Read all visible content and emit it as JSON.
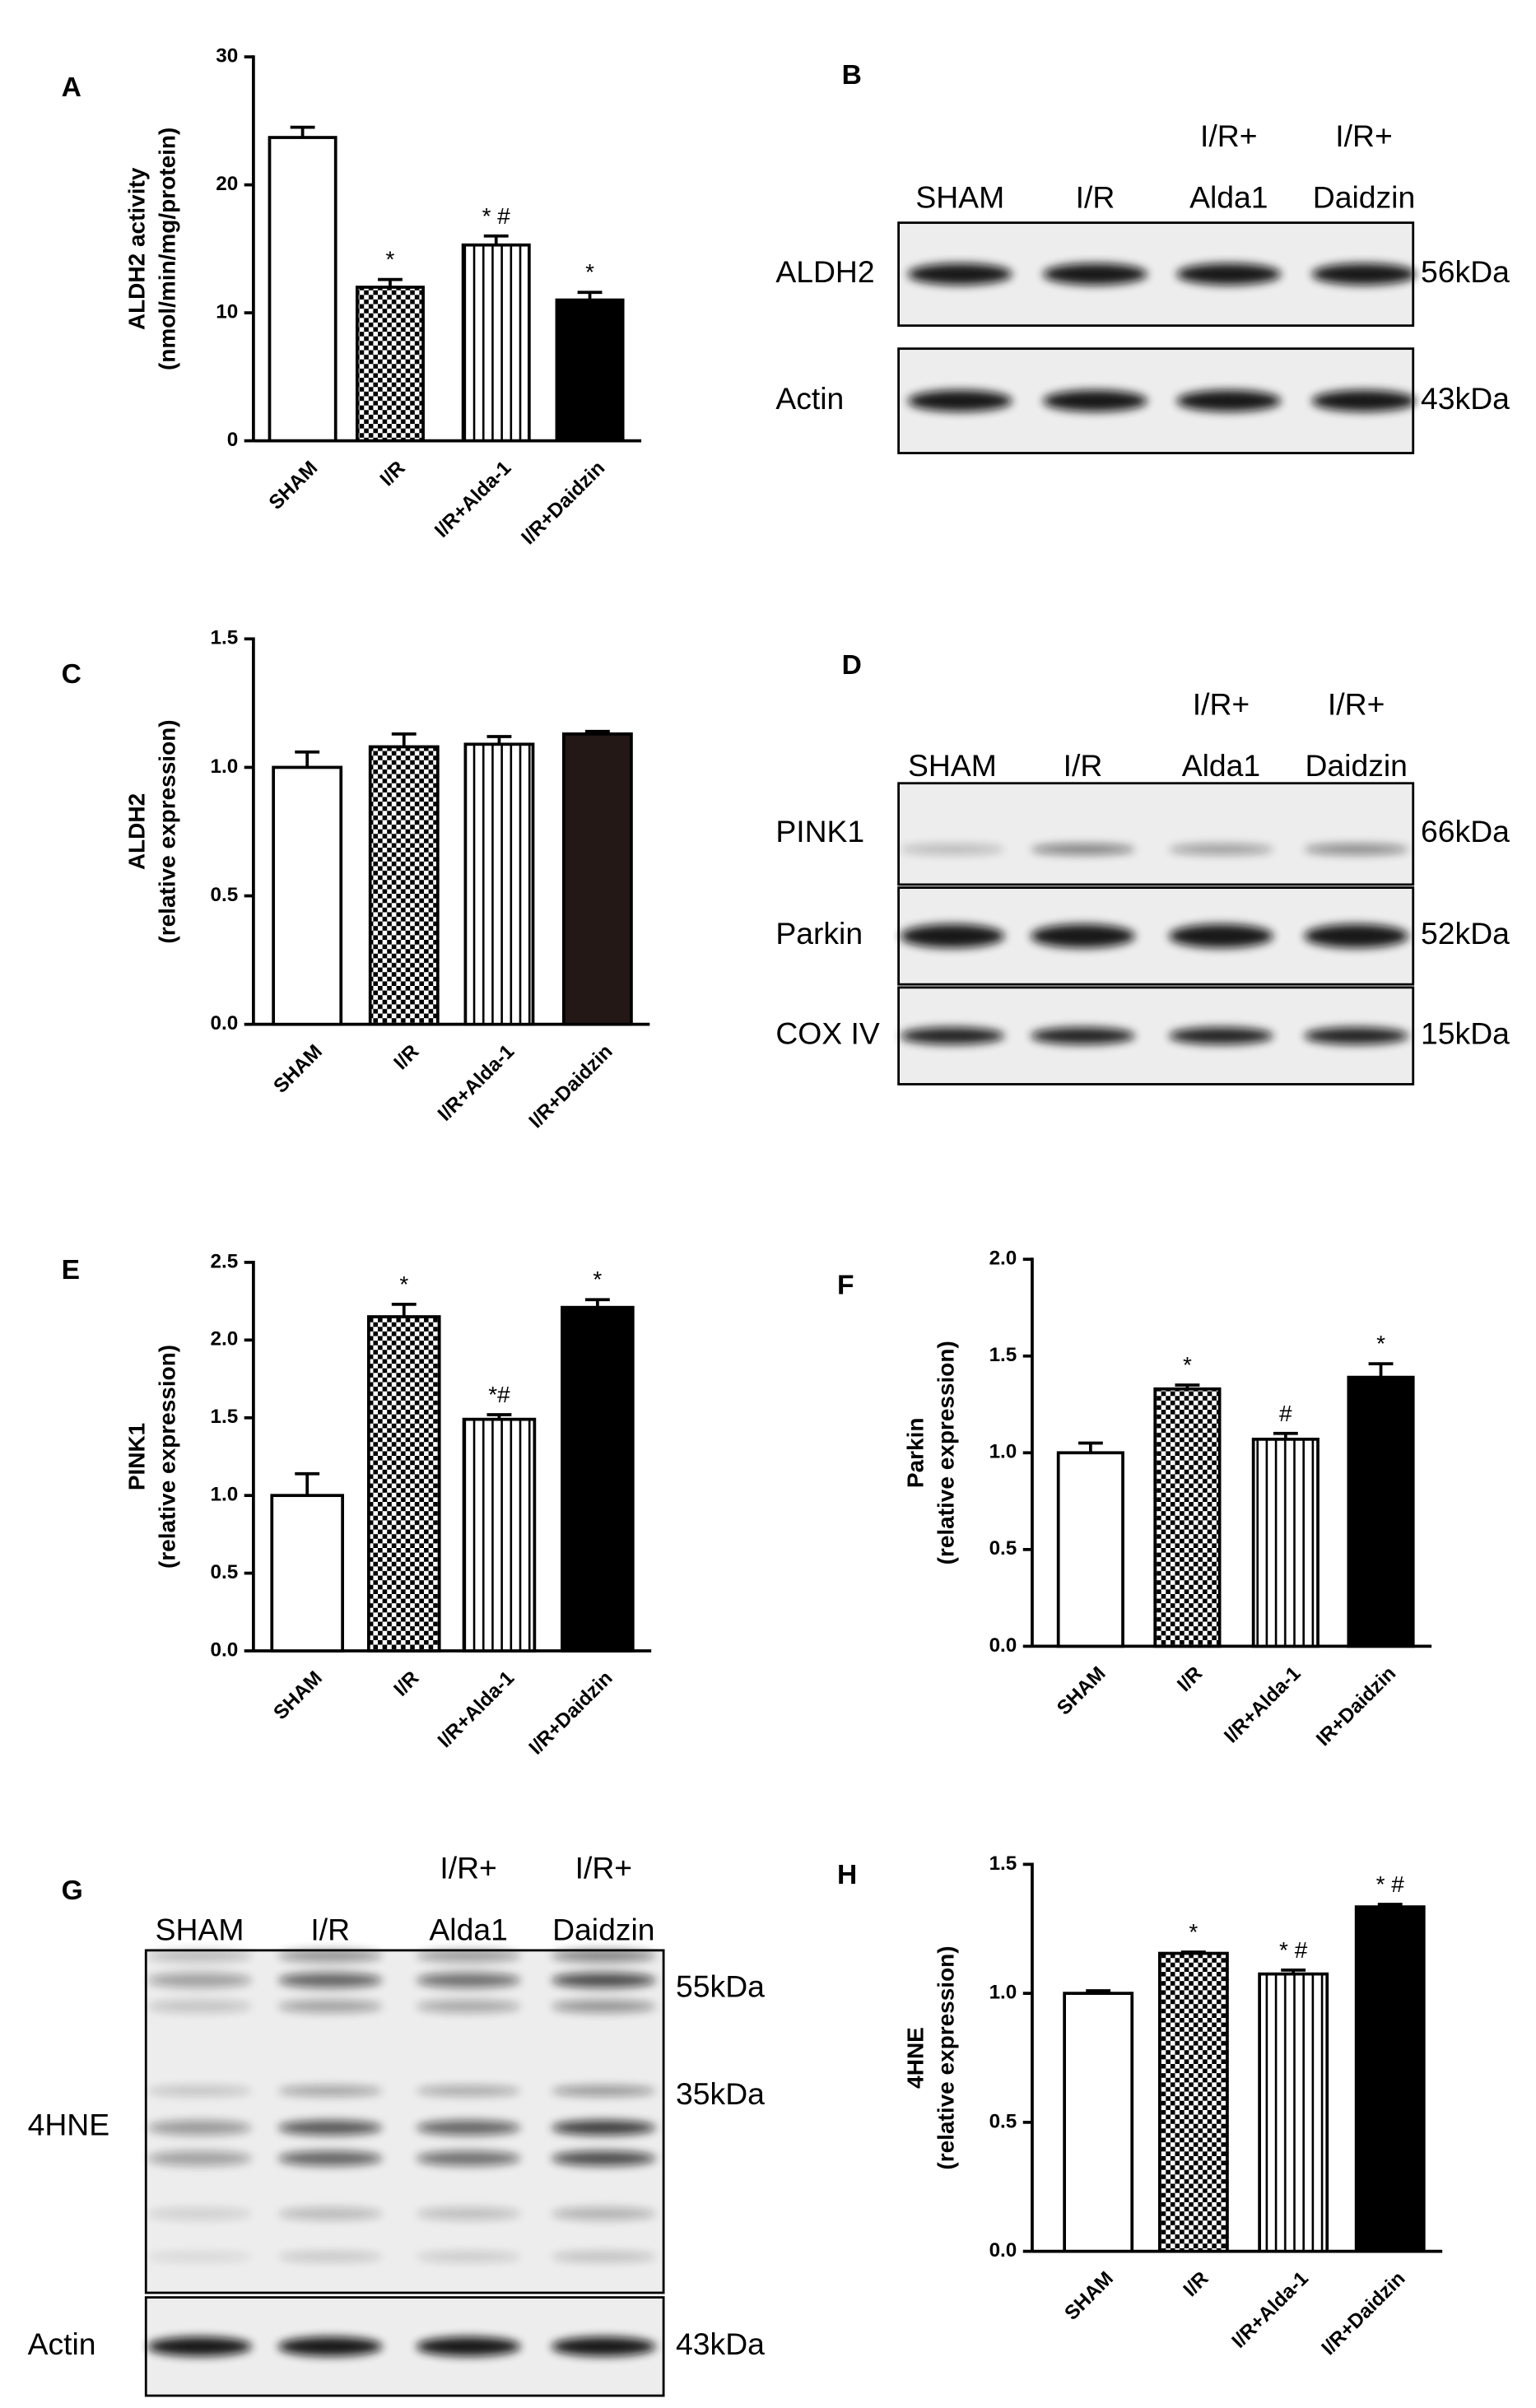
{
  "chart_data": [
    {
      "type": "bar",
      "panel": "A",
      "y_label": [
        "ALDH2 activity",
        "(nmol/min/mg/protein)"
      ],
      "categories": [
        "SHAM",
        "I/R",
        "I/R+Alda-1",
        "I/R+Daidzin"
      ],
      "values": [
        23.7,
        12.0,
        15.3,
        11.0
      ],
      "errors": [
        0.8,
        0.6,
        0.7,
        0.6
      ],
      "annotations": [
        null,
        "*",
        "* #",
        "*"
      ],
      "patterns": [
        null,
        "checker",
        "stripes",
        null
      ],
      "colors": [
        "#ffffff",
        "#ffffff",
        "#ffffff",
        "#000000"
      ],
      "ylim": [
        0,
        30
      ],
      "yticks": [
        0,
        10,
        20,
        30
      ]
    },
    {
      "type": "bar",
      "panel": "C",
      "y_label": [
        "ALDH2",
        "(relative expression)"
      ],
      "categories": [
        "SHAM",
        "I/R",
        "I/R+Alda-1",
        "I/R+Daidzin"
      ],
      "values": [
        1.0,
        1.08,
        1.09,
        1.13
      ],
      "errors": [
        0.06,
        0.05,
        0.03,
        0.01
      ],
      "annotations": [
        null,
        null,
        null,
        null
      ],
      "patterns": [
        null,
        "checker",
        "stripes",
        null
      ],
      "colors": [
        "#ffffff",
        "#ffffff",
        "#ffffff",
        "#231815"
      ],
      "ylim": [
        0,
        1.5
      ],
      "yticks": [
        {
          "value": 0,
          "label": "0.0"
        },
        0.5,
        {
          "value": 1,
          "label": "1.0"
        },
        1.5
      ]
    },
    {
      "type": "bar",
      "panel": "E",
      "y_label": [
        "PINK1",
        "(relative expression)"
      ],
      "categories": [
        "SHAM",
        "I/R",
        "I/R+Alda-1",
        "I/R+Daidzin"
      ],
      "values": [
        1.0,
        2.15,
        1.49,
        2.21
      ],
      "errors": [
        0.14,
        0.08,
        0.03,
        0.05
      ],
      "annotations": [
        null,
        "*",
        "*#",
        "*"
      ],
      "patterns": [
        null,
        "checker",
        "stripes",
        null
      ],
      "colors": [
        "#ffffff",
        "#ffffff",
        "#ffffff",
        "#000000"
      ],
      "ylim": [
        0,
        2.5
      ],
      "yticks": [
        {
          "value": 0,
          "label": "0.0"
        },
        0.5,
        {
          "value": 1,
          "label": "1.0"
        },
        1.5,
        {
          "value": 2,
          "label": "2.0"
        },
        2.5
      ]
    },
    {
      "type": "bar",
      "panel": "F",
      "y_label": [
        "Parkin",
        "(relative expression)"
      ],
      "categories": [
        "SHAM",
        "I/R",
        "I/R+Alda-1",
        "IR+Daidzin"
      ],
      "values": [
        1.0,
        1.33,
        1.07,
        1.39
      ],
      "errors": [
        0.05,
        0.02,
        0.03,
        0.07
      ],
      "annotations": [
        null,
        "*",
        "#",
        "*"
      ],
      "patterns": [
        null,
        "checker",
        "stripes",
        null
      ],
      "colors": [
        "#ffffff",
        "#ffffff",
        "#ffffff",
        "#000000"
      ],
      "ylim": [
        0,
        2
      ],
      "yticks": [
        {
          "value": 0,
          "label": "0.0"
        },
        0.5,
        {
          "value": 1,
          "label": "1.0"
        },
        1.5,
        {
          "value": 2,
          "label": "2.0"
        }
      ]
    },
    {
      "type": "bar",
      "panel": "H",
      "y_label": [
        "4HNE",
        "(relative expression)"
      ],
      "categories": [
        "SHAM",
        "I/R",
        "I/R+Alda-1",
        "I/R+Daidzin"
      ],
      "values": [
        1.0,
        1.155,
        1.075,
        1.335
      ],
      "errors": [
        0.01,
        0.005,
        0.015,
        0.01
      ],
      "annotations": [
        null,
        "*",
        "* #",
        "* #"
      ],
      "patterns": [
        null,
        "checker",
        "stripes",
        null
      ],
      "colors": [
        "#ffffff",
        "#ffffff",
        "#ffffff",
        "#000000"
      ],
      "ylim": [
        0,
        1.5
      ],
      "yticks": [
        {
          "value": 0,
          "label": "0.0"
        },
        0.5,
        {
          "value": 1,
          "label": "1.0"
        },
        1.5
      ]
    }
  ],
  "blots": [
    {
      "panel": "B",
      "lanes": [
        [
          "SHAM"
        ],
        [
          "I/R"
        ],
        [
          "I/R+",
          "Alda1"
        ],
        [
          "I/R+",
          "Daidzin"
        ]
      ],
      "rows": [
        {
          "label": "ALDH2",
          "sizes": [
            "56kDa"
          ]
        },
        {
          "label": "Actin",
          "sizes": [
            "43kDa"
          ]
        }
      ]
    },
    {
      "panel": "D",
      "lanes": [
        [
          "SHAM"
        ],
        [
          "I/R"
        ],
        [
          "I/R+",
          "Alda1"
        ],
        [
          "I/R+",
          "Daidzin"
        ]
      ],
      "rows": [
        {
          "label": "PINK1",
          "sizes": [
            "66kDa"
          ]
        },
        {
          "label": "Parkin",
          "sizes": [
            "52kDa"
          ]
        },
        {
          "label": "COX IV",
          "sizes": [
            "15kDa"
          ]
        }
      ]
    },
    {
      "panel": "G",
      "lanes": [
        [
          "SHAM"
        ],
        [
          "I/R"
        ],
        [
          "I/R+",
          "Alda1"
        ],
        [
          "I/R+",
          "Daidzin"
        ]
      ],
      "rows": [
        {
          "label": "4HNE",
          "sizes": [
            "55kDa",
            "35kDa"
          ]
        },
        {
          "label": "Actin",
          "sizes": [
            "43kDa"
          ]
        }
      ]
    }
  ]
}
